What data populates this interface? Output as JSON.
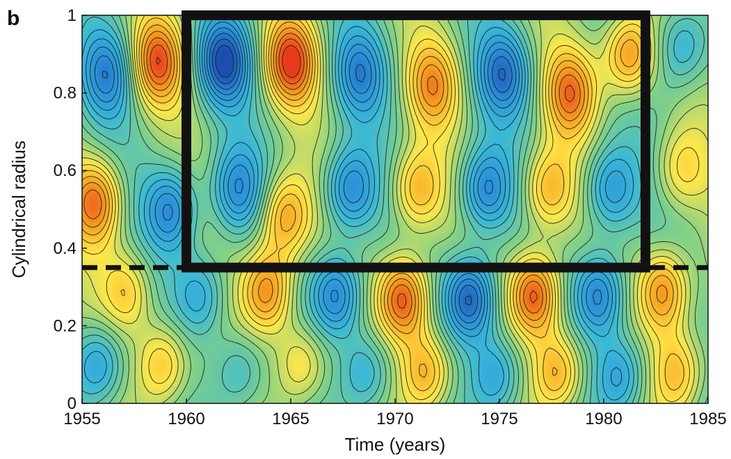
{
  "panel_label": "b",
  "chart_data": {
    "type": "heatmap",
    "xlabel": "Time (years)",
    "ylabel": "Cylindrical radius",
    "xlim": [
      1955,
      1985
    ],
    "ylim": [
      0,
      1
    ],
    "x_ticks": [
      1955,
      1960,
      1965,
      1970,
      1975,
      1980,
      1985
    ],
    "y_ticks": [
      0,
      0.2,
      0.4,
      0.6,
      0.8,
      1
    ],
    "y_tick_labels": [
      "0",
      "0.2",
      "0.4",
      "0.6",
      "0.8",
      "1"
    ],
    "colormap": [
      "#1a4fb0",
      "#2a8fd8",
      "#3ab8d8",
      "#7fd08a",
      "#ffe84a",
      "#f6a020",
      "#e83a1a"
    ],
    "contour_color": "#1a1a1a",
    "field_features": [
      {
        "x": 1955.8,
        "y": 0.1,
        "value": -0.6
      },
      {
        "x": 1958.9,
        "y": 0.1,
        "value": 0.6
      },
      {
        "x": 1962.5,
        "y": 0.08,
        "value": -0.4
      },
      {
        "x": 1965.5,
        "y": 0.1,
        "value": 0.5
      },
      {
        "x": 1968.6,
        "y": 0.08,
        "value": -0.5
      },
      {
        "x": 1971.5,
        "y": 0.08,
        "value": 0.7
      },
      {
        "x": 1974.8,
        "y": 0.07,
        "value": -0.6
      },
      {
        "x": 1977.8,
        "y": 0.08,
        "value": 0.7
      },
      {
        "x": 1980.8,
        "y": 0.07,
        "value": -0.6
      },
      {
        "x": 1983.6,
        "y": 0.08,
        "value": 0.6
      },
      {
        "x": 1957.2,
        "y": 0.29,
        "value": 0.5
      },
      {
        "x": 1960.7,
        "y": 0.28,
        "value": -0.5
      },
      {
        "x": 1963.9,
        "y": 0.29,
        "value": 0.8
      },
      {
        "x": 1967.2,
        "y": 0.28,
        "value": -0.8
      },
      {
        "x": 1970.4,
        "y": 0.27,
        "value": 1.0
      },
      {
        "x": 1973.6,
        "y": 0.27,
        "value": -1.0
      },
      {
        "x": 1976.7,
        "y": 0.28,
        "value": 1.0
      },
      {
        "x": 1979.8,
        "y": 0.28,
        "value": -0.8
      },
      {
        "x": 1982.9,
        "y": 0.29,
        "value": 0.8
      },
      {
        "x": 1955.7,
        "y": 0.52,
        "value": 0.8
      },
      {
        "x": 1959.3,
        "y": 0.5,
        "value": -0.7
      },
      {
        "x": 1962.4,
        "y": 0.55,
        "value": -0.6
      },
      {
        "x": 1964.7,
        "y": 0.48,
        "value": 0.7
      },
      {
        "x": 1967.8,
        "y": 0.55,
        "value": -0.7
      },
      {
        "x": 1971.0,
        "y": 0.55,
        "value": 0.6
      },
      {
        "x": 1974.3,
        "y": 0.55,
        "value": -0.7
      },
      {
        "x": 1977.3,
        "y": 0.55,
        "value": 0.6
      },
      {
        "x": 1980.3,
        "y": 0.55,
        "value": -0.6
      },
      {
        "x": 1983.6,
        "y": 0.6,
        "value": 0.4
      },
      {
        "x": 1956.2,
        "y": 0.85,
        "value": -0.6
      },
      {
        "x": 1958.6,
        "y": 0.88,
        "value": 0.8
      },
      {
        "x": 1961.8,
        "y": 0.88,
        "value": -0.9
      },
      {
        "x": 1965.0,
        "y": 0.88,
        "value": 0.9
      },
      {
        "x": 1968.3,
        "y": 0.85,
        "value": -0.6
      },
      {
        "x": 1971.8,
        "y": 0.82,
        "value": 0.6
      },
      {
        "x": 1975.2,
        "y": 0.85,
        "value": -0.7
      },
      {
        "x": 1978.4,
        "y": 0.8,
        "value": 0.7
      },
      {
        "x": 1981.2,
        "y": 0.9,
        "value": 0.8
      },
      {
        "x": 1983.8,
        "y": 0.92,
        "value": -0.5
      }
    ],
    "highlight_box": {
      "x0": 1960,
      "x1": 1982,
      "y0": 0.35,
      "y1": 1
    },
    "dashed_line": {
      "y": 0.35,
      "x0": 1955,
      "x1": 1985
    }
  }
}
